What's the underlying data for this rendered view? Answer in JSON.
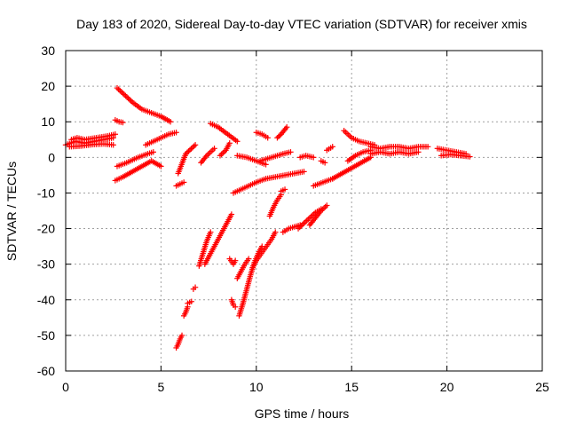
{
  "chart_data": {
    "type": "scatter",
    "title": "Day 183 of 2020, Sidereal Day-to-day VTEC variation (SDTVAR) for receiver xmis",
    "xlabel": "GPS time / hours",
    "ylabel": "SDTVAR / TECUs",
    "xlim": [
      0,
      25
    ],
    "ylim": [
      -60,
      30
    ],
    "xticks": [
      0,
      5,
      10,
      15,
      20,
      25
    ],
    "yticks": [
      -60,
      -50,
      -40,
      -30,
      -20,
      -10,
      0,
      10,
      20,
      30
    ],
    "grid": true,
    "marker": "plus",
    "color": "#ff0000",
    "segments": [
      {
        "x": [
          0.0,
          0.5,
          1.0,
          1.5,
          2.0,
          2.5
        ],
        "y": [
          3.5,
          4.5,
          4.0,
          4.5,
          5.0,
          5.5
        ]
      },
      {
        "x": [
          0.2,
          0.8,
          1.4,
          2.0,
          2.5
        ],
        "y": [
          3.0,
          3.2,
          3.6,
          3.8,
          3.5
        ]
      },
      {
        "x": [
          0.3,
          0.6,
          1.0,
          1.6,
          2.2,
          2.6
        ],
        "y": [
          5.0,
          5.5,
          5.0,
          5.5,
          6.0,
          6.5
        ]
      },
      {
        "x": [
          2.6,
          2.8,
          3.0
        ],
        "y": [
          10.5,
          10.0,
          9.8
        ]
      },
      {
        "x": [
          2.7,
          3.0,
          3.5,
          4.0,
          4.5,
          5.0,
          5.5
        ],
        "y": [
          19.5,
          18.0,
          15.5,
          13.5,
          12.5,
          11.5,
          10.0
        ]
      },
      {
        "x": [
          2.6,
          3.0,
          3.5,
          4.0,
          4.5,
          5.0
        ],
        "y": [
          -6.5,
          -5.5,
          -4.0,
          -2.5,
          -1.0,
          -2.5
        ]
      },
      {
        "x": [
          2.7,
          3.2,
          3.8,
          4.3,
          4.6
        ],
        "y": [
          -2.5,
          -1.5,
          0.0,
          1.0,
          1.5
        ]
      },
      {
        "x": [
          4.2,
          4.6,
          5.0,
          5.4,
          5.8
        ],
        "y": [
          3.5,
          4.5,
          5.5,
          6.5,
          7.0
        ]
      },
      {
        "x": [
          5.8,
          6.0,
          6.2
        ],
        "y": [
          -8.0,
          -7.5,
          -7.0
        ]
      },
      {
        "x": [
          5.9,
          6.3,
          6.8
        ],
        "y": [
          -4.5,
          1.0,
          3.5
        ]
      },
      {
        "x": [
          5.8,
          5.9,
          6.0,
          6.1
        ],
        "y": [
          -53.5,
          -52.5,
          -51.0,
          -50.0
        ]
      },
      {
        "x": [
          6.2,
          6.3,
          6.4
        ],
        "y": [
          -44.5,
          -43.5,
          -42.0
        ]
      },
      {
        "x": [
          6.4,
          6.6
        ],
        "y": [
          -41.0,
          -40.5
        ]
      },
      {
        "x": [
          6.7,
          6.8
        ],
        "y": [
          -37.0,
          -36.5
        ]
      },
      {
        "x": [
          7.0,
          7.2,
          7.4,
          7.6
        ],
        "y": [
          -30.5,
          -27.0,
          -23.5,
          -21.0
        ]
      },
      {
        "x": [
          7.3,
          7.5,
          7.7,
          7.9,
          8.1,
          8.3,
          8.5,
          8.7
        ],
        "y": [
          -30.0,
          -28.0,
          -26.0,
          -24.0,
          -22.0,
          -20.0,
          -18.0,
          -16.0
        ]
      },
      {
        "x": [
          7.1,
          7.4,
          7.8
        ],
        "y": [
          -1.5,
          0.5,
          2.5
        ]
      },
      {
        "x": [
          7.6,
          8.0,
          8.5,
          9.0
        ],
        "y": [
          9.5,
          8.5,
          6.5,
          4.5
        ]
      },
      {
        "x": [
          8.1,
          8.4,
          8.6
        ],
        "y": [
          0.5,
          2.0,
          4.0
        ]
      },
      {
        "x": [
          8.6,
          8.8,
          8.9
        ],
        "y": [
          -28.5,
          -30.0,
          -29.0
        ]
      },
      {
        "x": [
          8.7,
          8.8,
          8.9
        ],
        "y": [
          -40.0,
          -41.5,
          -42.0
        ]
      },
      {
        "x": [
          9.0,
          9.2,
          9.4,
          9.6
        ],
        "y": [
          -34.0,
          -32.0,
          -30.0,
          -28.5
        ]
      },
      {
        "x": [
          9.1,
          9.3,
          9.5,
          9.7,
          9.9,
          10.1,
          10.3
        ],
        "y": [
          -44.5,
          -41.0,
          -37.0,
          -33.0,
          -29.5,
          -27.0,
          -25.0
        ]
      },
      {
        "x": [
          9.8,
          10.0,
          10.2,
          10.4,
          10.6,
          10.8,
          11.0
        ],
        "y": [
          -31.0,
          -29.0,
          -27.5,
          -26.0,
          -24.5,
          -23.0,
          -21.0
        ]
      },
      {
        "x": [
          8.8,
          9.2,
          9.6,
          10.0,
          10.5
        ],
        "y": [
          -10.0,
          -9.0,
          -8.0,
          -7.0,
          -6.0
        ]
      },
      {
        "x": [
          10.5,
          11.0,
          11.5,
          12.0,
          12.5
        ],
        "y": [
          -6.0,
          -5.5,
          -5.0,
          -4.5,
          -4.0
        ]
      },
      {
        "x": [
          9.0,
          9.5,
          10.0,
          10.5
        ],
        "y": [
          0.5,
          0.0,
          -1.0,
          -2.0
        ]
      },
      {
        "x": [
          10.2,
          10.8,
          11.4,
          11.8
        ],
        "y": [
          -1.0,
          0.0,
          1.0,
          1.5
        ]
      },
      {
        "x": [
          10.0,
          10.3,
          10.6
        ],
        "y": [
          7.0,
          6.5,
          5.5
        ]
      },
      {
        "x": [
          11.1,
          11.3,
          11.6
        ],
        "y": [
          5.5,
          6.5,
          8.5
        ]
      },
      {
        "x": [
          10.7,
          10.9,
          11.1,
          11.3
        ],
        "y": [
          -16.5,
          -14.0,
          -12.0,
          -10.5
        ]
      },
      {
        "x": [
          11.3,
          11.5
        ],
        "y": [
          -9.5,
          -9.0
        ]
      },
      {
        "x": [
          11.4,
          11.7,
          12.0,
          12.3
        ],
        "y": [
          -21.0,
          -20.0,
          -19.5,
          -19.0
        ]
      },
      {
        "x": [
          12.2,
          12.5,
          12.8,
          13.1,
          13.4
        ],
        "y": [
          -20.0,
          -18.5,
          -17.0,
          -15.5,
          -14.5
        ]
      },
      {
        "x": [
          12.8,
          13.1,
          13.4,
          13.7
        ],
        "y": [
          -19.0,
          -17.0,
          -15.0,
          -13.5
        ]
      },
      {
        "x": [
          12.3,
          12.6,
          13.0
        ],
        "y": [
          0.0,
          0.5,
          0.0
        ]
      },
      {
        "x": [
          13.0,
          13.5,
          14.0
        ],
        "y": [
          -8.0,
          -7.0,
          -6.0
        ]
      },
      {
        "x": [
          13.4,
          13.6
        ],
        "y": [
          -1.0,
          -1.5
        ]
      },
      {
        "x": [
          13.7,
          14.0
        ],
        "y": [
          2.0,
          3.0
        ]
      },
      {
        "x": [
          14.0,
          14.5,
          15.0,
          15.5,
          16.0
        ],
        "y": [
          -6.0,
          -4.5,
          -3.0,
          -1.5,
          0.0
        ]
      },
      {
        "x": [
          14.6,
          15.0,
          15.4,
          15.8,
          16.2
        ],
        "y": [
          7.5,
          5.5,
          4.5,
          4.0,
          3.5
        ]
      },
      {
        "x": [
          14.8,
          15.2,
          15.6,
          16.0
        ],
        "y": [
          -1.0,
          0.5,
          1.5,
          2.0
        ]
      },
      {
        "x": [
          16.0,
          16.5,
          17.0,
          17.5,
          18.0,
          18.5,
          19.0
        ],
        "y": [
          3.0,
          2.5,
          3.0,
          3.0,
          2.5,
          3.0,
          3.0
        ]
      },
      {
        "x": [
          16.0,
          16.5,
          17.0,
          17.5,
          18.0,
          18.5
        ],
        "y": [
          1.0,
          1.5,
          1.0,
          1.5,
          1.0,
          1.5
        ]
      },
      {
        "x": [
          19.5,
          20.0,
          20.5,
          21.0
        ],
        "y": [
          2.5,
          2.0,
          1.5,
          1.0
        ]
      },
      {
        "x": [
          19.7,
          20.2,
          20.7,
          21.2
        ],
        "y": [
          0.5,
          0.8,
          0.5,
          0.2
        ]
      }
    ]
  }
}
